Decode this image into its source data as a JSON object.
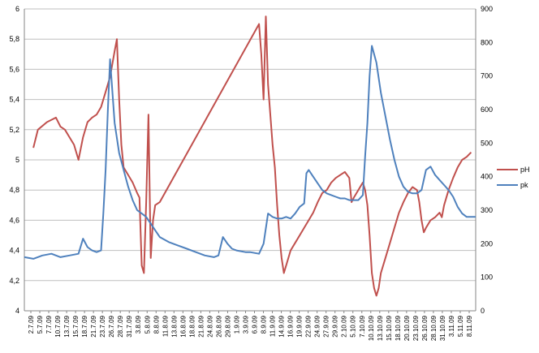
{
  "chart_data": {
    "type": "line",
    "grid": true,
    "legend_position": "right",
    "y_left": {
      "min": 4,
      "max": 6,
      "ticks": [
        "4",
        "4,2",
        "4,4",
        "4,6",
        "4,8",
        "5",
        "5,2",
        "5,4",
        "5,6",
        "5,8",
        "6"
      ]
    },
    "y_right": {
      "min": 0,
      "max": 900,
      "ticks": [
        "0",
        "100",
        "200",
        "300",
        "400",
        "500",
        "600",
        "700",
        "800",
        "900"
      ]
    },
    "x_labels": [
      "2.7.09",
      "5.7.09",
      "7.7.09",
      "10.7.09",
      "13.7.09",
      "15.7.09",
      "18.7.09",
      "21.7.09",
      "23.7.09",
      "26.7.09",
      "28.7.09",
      "31.7.09",
      "3.8.09",
      "5.8.09",
      "8.8.09",
      "11.8.09",
      "13.8.09",
      "16.8.09",
      "18.8.09",
      "21.8.09",
      "24.8.09",
      "26.8.09",
      "29.8.09",
      "1.9.09",
      "3.9.09",
      "6.9.09",
      "8.9.09",
      "11.9.09",
      "14.9.09",
      "16.9.09",
      "19.9.09",
      "22.9.09",
      "24.9.09",
      "27.9.09",
      "29.9.09",
      "2.10.09",
      "5.10.09",
      "7.10.09",
      "10.10.09",
      "13.10.09",
      "15.10.09",
      "18.10.09",
      "20.10.09",
      "23.10.09",
      "26.10.09",
      "28.10.09",
      "31.10.09",
      "3.11.09",
      "5.11.09",
      "8.11.09"
    ],
    "series": [
      {
        "name": "pH",
        "color": "#c0504d",
        "axis": "left",
        "points": [
          [
            0.02,
            5.08
          ],
          [
            0.03,
            5.2
          ],
          [
            0.05,
            5.25
          ],
          [
            0.07,
            5.28
          ],
          [
            0.08,
            5.22
          ],
          [
            0.09,
            5.2
          ],
          [
            0.1,
            5.15
          ],
          [
            0.11,
            5.1
          ],
          [
            0.12,
            5.0
          ],
          [
            0.13,
            5.15
          ],
          [
            0.14,
            5.25
          ],
          [
            0.15,
            5.28
          ],
          [
            0.16,
            5.3
          ],
          [
            0.17,
            5.35
          ],
          [
            0.18,
            5.45
          ],
          [
            0.19,
            5.55
          ],
          [
            0.2,
            5.72
          ],
          [
            0.205,
            5.8
          ],
          [
            0.21,
            5.4
          ],
          [
            0.215,
            5.1
          ],
          [
            0.22,
            4.95
          ],
          [
            0.23,
            4.9
          ],
          [
            0.24,
            4.85
          ],
          [
            0.25,
            4.78
          ],
          [
            0.255,
            4.75
          ],
          [
            0.26,
            4.3
          ],
          [
            0.265,
            4.25
          ],
          [
            0.27,
            4.72
          ],
          [
            0.275,
            5.3
          ],
          [
            0.28,
            4.35
          ],
          [
            0.285,
            4.6
          ],
          [
            0.29,
            4.7
          ],
          [
            0.3,
            4.72
          ],
          [
            0.52,
            5.9
          ],
          [
            0.525,
            5.7
          ],
          [
            0.53,
            5.4
          ],
          [
            0.535,
            5.95
          ],
          [
            0.54,
            5.5
          ],
          [
            0.545,
            5.3
          ],
          [
            0.55,
            5.1
          ],
          [
            0.555,
            4.95
          ],
          [
            0.56,
            4.7
          ],
          [
            0.565,
            4.5
          ],
          [
            0.57,
            4.35
          ],
          [
            0.575,
            4.25
          ],
          [
            0.58,
            4.3
          ],
          [
            0.59,
            4.4
          ],
          [
            0.6,
            4.45
          ],
          [
            0.61,
            4.5
          ],
          [
            0.62,
            4.55
          ],
          [
            0.63,
            4.6
          ],
          [
            0.64,
            4.65
          ],
          [
            0.65,
            4.72
          ],
          [
            0.66,
            4.78
          ],
          [
            0.67,
            4.8
          ],
          [
            0.68,
            4.85
          ],
          [
            0.69,
            4.88
          ],
          [
            0.7,
            4.9
          ],
          [
            0.71,
            4.92
          ],
          [
            0.72,
            4.88
          ],
          [
            0.725,
            4.72
          ],
          [
            0.73,
            4.75
          ],
          [
            0.74,
            4.8
          ],
          [
            0.75,
            4.85
          ],
          [
            0.755,
            4.8
          ],
          [
            0.76,
            4.7
          ],
          [
            0.765,
            4.5
          ],
          [
            0.77,
            4.25
          ],
          [
            0.775,
            4.15
          ],
          [
            0.78,
            4.1
          ],
          [
            0.785,
            4.15
          ],
          [
            0.79,
            4.25
          ],
          [
            0.8,
            4.35
          ],
          [
            0.81,
            4.45
          ],
          [
            0.82,
            4.55
          ],
          [
            0.83,
            4.65
          ],
          [
            0.84,
            4.72
          ],
          [
            0.85,
            4.78
          ],
          [
            0.86,
            4.82
          ],
          [
            0.87,
            4.8
          ],
          [
            0.875,
            4.72
          ],
          [
            0.88,
            4.6
          ],
          [
            0.885,
            4.52
          ],
          [
            0.89,
            4.55
          ],
          [
            0.9,
            4.6
          ],
          [
            0.91,
            4.62
          ],
          [
            0.92,
            4.65
          ],
          [
            0.925,
            4.62
          ],
          [
            0.93,
            4.7
          ],
          [
            0.94,
            4.8
          ],
          [
            0.95,
            4.88
          ],
          [
            0.96,
            4.95
          ],
          [
            0.97,
            5.0
          ],
          [
            0.98,
            5.02
          ],
          [
            0.99,
            5.05
          ]
        ]
      },
      {
        "name": "pk",
        "color": "#4f81bd",
        "axis": "right",
        "points": [
          [
            0.0,
            160
          ],
          [
            0.02,
            155
          ],
          [
            0.04,
            165
          ],
          [
            0.06,
            170
          ],
          [
            0.08,
            160
          ],
          [
            0.1,
            165
          ],
          [
            0.12,
            170
          ],
          [
            0.13,
            215
          ],
          [
            0.14,
            190
          ],
          [
            0.15,
            180
          ],
          [
            0.16,
            175
          ],
          [
            0.17,
            180
          ],
          [
            0.175,
            290
          ],
          [
            0.18,
            420
          ],
          [
            0.185,
            600
          ],
          [
            0.19,
            750
          ],
          [
            0.2,
            560
          ],
          [
            0.21,
            470
          ],
          [
            0.22,
            420
          ],
          [
            0.23,
            370
          ],
          [
            0.24,
            330
          ],
          [
            0.25,
            300
          ],
          [
            0.26,
            290
          ],
          [
            0.27,
            280
          ],
          [
            0.28,
            260
          ],
          [
            0.29,
            240
          ],
          [
            0.3,
            220
          ],
          [
            0.32,
            205
          ],
          [
            0.34,
            195
          ],
          [
            0.36,
            185
          ],
          [
            0.38,
            175
          ],
          [
            0.4,
            165
          ],
          [
            0.42,
            160
          ],
          [
            0.43,
            165
          ],
          [
            0.44,
            220
          ],
          [
            0.45,
            200
          ],
          [
            0.46,
            185
          ],
          [
            0.47,
            180
          ],
          [
            0.49,
            175
          ],
          [
            0.5,
            175
          ],
          [
            0.52,
            170
          ],
          [
            0.53,
            200
          ],
          [
            0.54,
            290
          ],
          [
            0.55,
            280
          ],
          [
            0.56,
            275
          ],
          [
            0.57,
            275
          ],
          [
            0.58,
            280
          ],
          [
            0.59,
            275
          ],
          [
            0.6,
            290
          ],
          [
            0.61,
            310
          ],
          [
            0.62,
            320
          ],
          [
            0.625,
            410
          ],
          [
            0.63,
            420
          ],
          [
            0.64,
            400
          ],
          [
            0.65,
            380
          ],
          [
            0.66,
            360
          ],
          [
            0.67,
            350
          ],
          [
            0.68,
            345
          ],
          [
            0.69,
            340
          ],
          [
            0.7,
            335
          ],
          [
            0.71,
            335
          ],
          [
            0.72,
            330
          ],
          [
            0.73,
            330
          ],
          [
            0.74,
            330
          ],
          [
            0.75,
            345
          ],
          [
            0.755,
            460
          ],
          [
            0.76,
            560
          ],
          [
            0.765,
            700
          ],
          [
            0.77,
            790
          ],
          [
            0.78,
            740
          ],
          [
            0.79,
            650
          ],
          [
            0.8,
            580
          ],
          [
            0.81,
            510
          ],
          [
            0.82,
            450
          ],
          [
            0.83,
            400
          ],
          [
            0.84,
            370
          ],
          [
            0.85,
            355
          ],
          [
            0.86,
            350
          ],
          [
            0.87,
            350
          ],
          [
            0.88,
            360
          ],
          [
            0.89,
            420
          ],
          [
            0.9,
            430
          ],
          [
            0.91,
            405
          ],
          [
            0.92,
            390
          ],
          [
            0.93,
            375
          ],
          [
            0.94,
            360
          ],
          [
            0.95,
            340
          ],
          [
            0.96,
            310
          ],
          [
            0.97,
            290
          ],
          [
            0.98,
            280
          ],
          [
            0.99,
            280
          ],
          [
            1.0,
            280
          ]
        ]
      }
    ]
  }
}
